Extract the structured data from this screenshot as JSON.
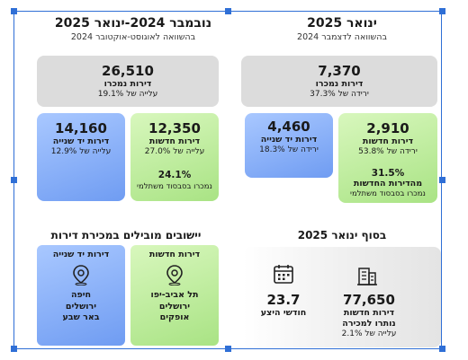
{
  "colors": {
    "frame": "#2f6fd6",
    "gray_box": "#dcdcdc",
    "green_box": "#b7ec93",
    "blue_box": "#8ab0f8"
  },
  "right": {
    "title": "ינואר 2025",
    "subtitle": "בהשוואה לדצמבר 2024",
    "total": {
      "value": "7,370",
      "label": "דירות נמכרו",
      "change": "ירידה של 37.3%"
    },
    "new": {
      "value": "2,910",
      "label": "דירות חדשות",
      "change": "ירידה של 53.8%",
      "pct": "31.5%",
      "pct_label": "מהדירות החדשות",
      "pct_note": "נמכרו בסבסוד משתלמי"
    },
    "used": {
      "value": "4,460",
      "label": "דירות יד שנייה",
      "change": "ירידה של 18.3%"
    }
  },
  "left": {
    "title": "נובמבר 2024-ינואר 2025",
    "subtitle": "בהשוואה לאוגוסט-אוקטובר 2024",
    "total": {
      "value": "26,510",
      "label": "דירות נמכרו",
      "change": "עלייה של 19.1%"
    },
    "new": {
      "value": "12,350",
      "label": "דירות חדשות",
      "change": "עלייה של 27.0%",
      "pct": "24.1%",
      "pct_note": "נמכרו בסבסוד משתלמי"
    },
    "used": {
      "value": "14,160",
      "label": "דירות יד שנייה",
      "change": "עלייה של 12.9%"
    }
  },
  "end_jan": {
    "title": "בסוף ינואר 2025",
    "unsold": {
      "value": "77,650",
      "label1": "דירות חדשות",
      "label2": "נותרו למכירה",
      "change": "עלייה של 2.1%",
      "icon": "building-icon"
    },
    "months": {
      "value": "23.7",
      "label": "חודשי היצע",
      "icon": "calendar-icon"
    }
  },
  "leading": {
    "title": "יישובים מובילים במכירת דירות",
    "new": {
      "label": "דירות חדשות",
      "places": [
        "תל אביב-יפו",
        "ירושלים",
        "אופקים"
      ],
      "icon": "location-pin-icon"
    },
    "used": {
      "label": "דירות יד שנייה",
      "places": [
        "חיפה",
        "ירושלים",
        "באר שבע"
      ],
      "icon": "location-pin-icon"
    }
  }
}
